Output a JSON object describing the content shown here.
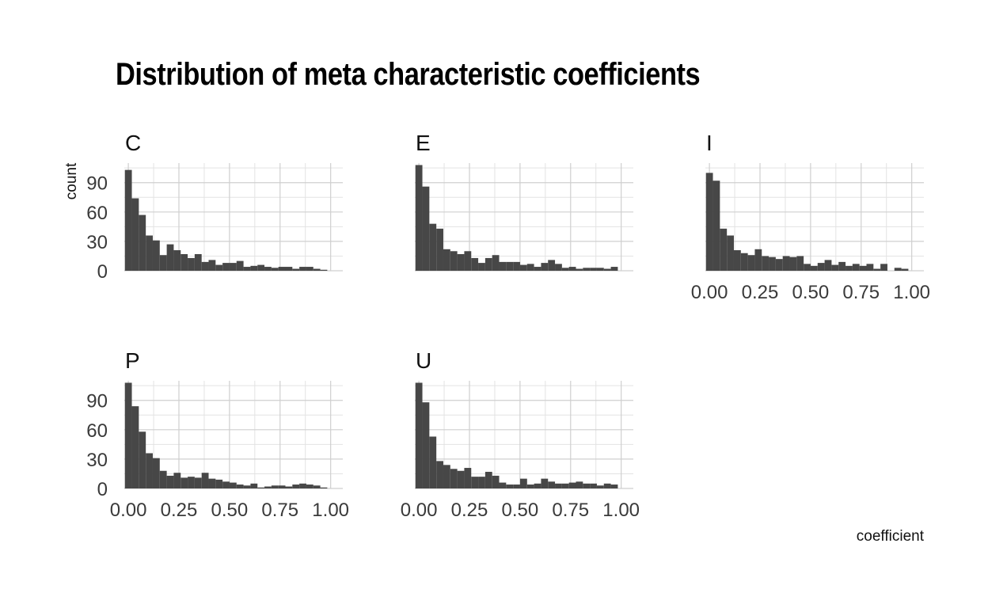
{
  "chart_data": {
    "type": "histogram",
    "title": "Distribution of meta characteristic coefficients",
    "xlabel": "coefficient",
    "ylabel": "count",
    "xlim": [
      -0.02,
      1.06
    ],
    "ylim": [
      0,
      110
    ],
    "x_ticks": [
      "0.00",
      "0.25",
      "0.50",
      "0.75",
      "1.00"
    ],
    "y_ticks": [
      "0",
      "30",
      "60",
      "90"
    ],
    "grid": true,
    "bar_color": "#474747",
    "bin_start": -0.0172,
    "bin_width": 0.0345,
    "panels": [
      {
        "name": "C",
        "counts": [
          103,
          74,
          57,
          36,
          31,
          16,
          27,
          21,
          17,
          13,
          17,
          9,
          11,
          6,
          8,
          8,
          10,
          4,
          5,
          6,
          4,
          3,
          4,
          4,
          2,
          4,
          4,
          2,
          1
        ]
      },
      {
        "name": "E",
        "counts": [
          108,
          86,
          48,
          43,
          22,
          20,
          17,
          20,
          13,
          8,
          13,
          16,
          9,
          9,
          9,
          6,
          7,
          4,
          8,
          11,
          7,
          3,
          4,
          2,
          3,
          3,
          3,
          2,
          4
        ]
      },
      {
        "name": "I",
        "counts": [
          100,
          92,
          43,
          36,
          21,
          18,
          16,
          22,
          15,
          14,
          12,
          15,
          14,
          15,
          7,
          5,
          8,
          11,
          6,
          9,
          5,
          7,
          5,
          7,
          2,
          7,
          0,
          3,
          2
        ]
      },
      {
        "name": "P",
        "counts": [
          108,
          84,
          58,
          36,
          31,
          18,
          13,
          16,
          11,
          12,
          11,
          16,
          10,
          9,
          7,
          6,
          4,
          3,
          5,
          1,
          2,
          3,
          3,
          2,
          4,
          5,
          4,
          3,
          1
        ]
      },
      {
        "name": "U",
        "counts": [
          108,
          88,
          53,
          28,
          24,
          20,
          18,
          21,
          12,
          12,
          17,
          13,
          6,
          4,
          4,
          10,
          4,
          5,
          10,
          7,
          5,
          5,
          6,
          7,
          5,
          5,
          3,
          5,
          4
        ]
      }
    ]
  }
}
